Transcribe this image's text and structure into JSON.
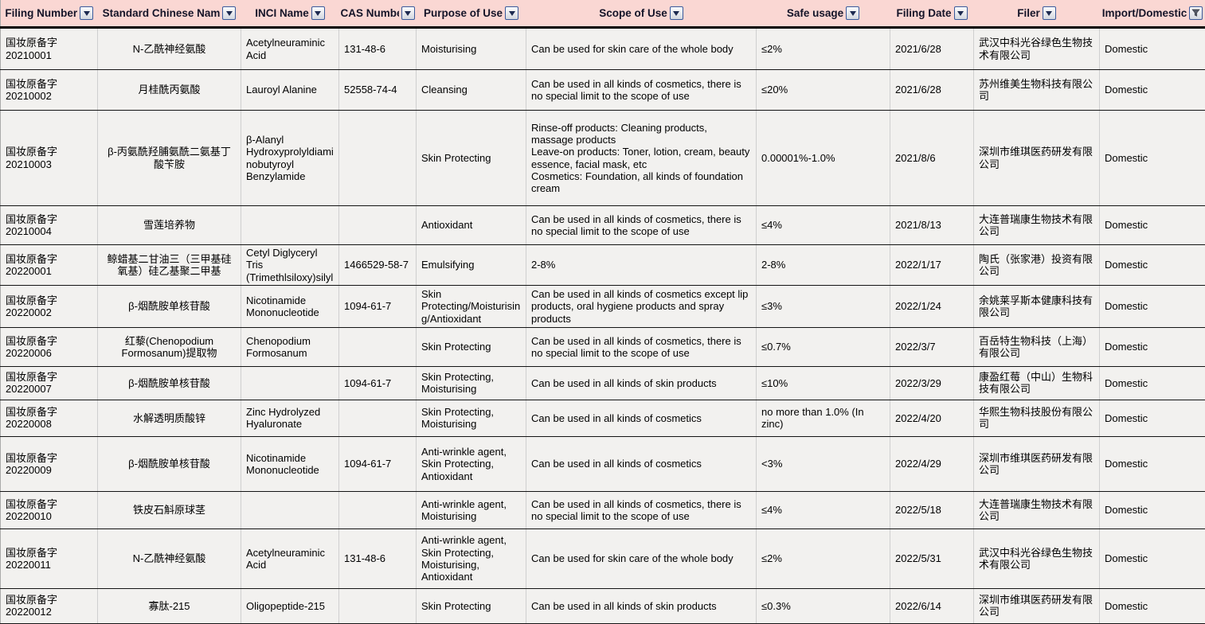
{
  "colors": {
    "header_bg": "#fad7d3",
    "header_text": "#141428",
    "row_bg": "#f2f1ef",
    "grid_dark": "#141414",
    "grid_light": "#cfcfcf",
    "filter_button_border": "#3a5a9b",
    "filter_button_glyph": "#1c2a50"
  },
  "icons": {
    "filter_dropdown": "down-triangle",
    "filter_applied": "funnel"
  },
  "header": {
    "columns": [
      {
        "label": "Filing Number",
        "filter_icon": "dropdown"
      },
      {
        "label": "Standard Chinese Nam",
        "filter_icon": "dropdown"
      },
      {
        "label": "INCI Name",
        "filter_icon": "dropdown"
      },
      {
        "label": "CAS Numbe",
        "filter_icon": "dropdown"
      },
      {
        "label": "Purpose of Use",
        "filter_icon": "dropdown"
      },
      {
        "label": "Scope of Use",
        "filter_icon": "dropdown"
      },
      {
        "label": "Safe usage",
        "filter_icon": "dropdown"
      },
      {
        "label": "Filing Date",
        "filter_icon": "dropdown"
      },
      {
        "label": "Filer",
        "filter_icon": "dropdown"
      },
      {
        "label": "Import/Domestic",
        "filter_icon": "funnel"
      }
    ]
  },
  "rows": [
    {
      "filing_number": "国妆原备字 20210001",
      "chinese_name": "N-乙酰神经氨酸",
      "inci_name": "Acetylneuraminic Acid",
      "cas_number": "131-48-6",
      "purpose": "Moisturising",
      "scope": "Can be used for skin care of the whole body",
      "safe_usage": "≤2%",
      "filing_date": "2021/6/28",
      "filer": "武汉中科光谷绿色生物技术有限公司",
      "import_domestic": "Domestic"
    },
    {
      "filing_number": "国妆原备字 20210002",
      "chinese_name": "月桂酰丙氨酸",
      "inci_name": "Lauroyl Alanine",
      "cas_number": "52558-74-4",
      "purpose": "Cleansing",
      "scope": "Can be used in all kinds of cosmetics, there is no special limit to the scope of use",
      "safe_usage": "≤20%",
      "filing_date": "2021/6/28",
      "filer": "苏州维美生物科技有限公司",
      "import_domestic": "Domestic"
    },
    {
      "filing_number": "国妆原备字 20210003",
      "chinese_name": "β-丙氨酰羟脯氨酰二氨基丁酸苄胺",
      "inci_name": "β-Alanyl Hydroxyprolyldiaminobutyroyl Benzylamide",
      "cas_number": "",
      "purpose": "Skin Protecting",
      "scope": "Rinse-off products: Cleaning products, massage products\nLeave-on products: Toner, lotion, cream, beauty essence, facial mask, etc\nCosmetics: Foundation, all kinds of foundation cream",
      "safe_usage": "0.00001%-1.0%",
      "filing_date": "2021/8/6",
      "filer": "深圳市维琪医药研发有限公司",
      "import_domestic": "Domestic"
    },
    {
      "filing_number": "国妆原备字 20210004",
      "chinese_name": "雪莲培养物",
      "inci_name": "",
      "cas_number": "",
      "purpose": "Antioxidant",
      "scope": "Can be used in all kinds of cosmetics, there is no special limit to the scope of use",
      "safe_usage": "≤4%",
      "filing_date": "2021/8/13",
      "filer": "大连普瑞康生物技术有限公司",
      "import_domestic": "Domestic"
    },
    {
      "filing_number": "国妆原备字 20220001",
      "chinese_name": "鲸蜡基二甘油三（三甲基硅氧基）硅乙基聚二甲基",
      "inci_name": "Cetyl Diglyceryl Tris (Trimethlsiloxy)silyl",
      "cas_number": "1466529-58-7",
      "purpose": "Emulsifying",
      "scope": "2-8%",
      "safe_usage": "2-8%",
      "filing_date": "2022/1/17",
      "filer": "陶氏（张家港）投资有限公司",
      "import_domestic": "Domestic"
    },
    {
      "filing_number": "国妆原备字 20220002",
      "chinese_name": "β-烟酰胺单核苷酸",
      "inci_name": "Nicotinamide Mononucleotide",
      "cas_number": "1094-61-7",
      "purpose": "Skin Protecting/Moisturising/Antioxidant",
      "scope": "Can be used in all kinds of cosmetics except lip products, oral hygiene products and spray products",
      "safe_usage": "≤3%",
      "filing_date": "2022/1/24",
      "filer": "余姚莱孚斯本健康科技有限公司",
      "import_domestic": "Domestic"
    },
    {
      "filing_number": "国妆原备字 20220006",
      "chinese_name": "红藜(Chenopodium Formosanum)提取物",
      "inci_name": "Chenopodium Formosanum",
      "cas_number": "",
      "purpose": "Skin Protecting",
      "scope": "Can be used in all kinds of cosmetics, there is no special limit to the scope of use",
      "safe_usage": "≤0.7%",
      "filing_date": "2022/3/7",
      "filer": "百岳特生物科技（上海）有限公司",
      "import_domestic": "Domestic"
    },
    {
      "filing_number": "国妆原备字 20220007",
      "chinese_name": "β-烟酰胺单核苷酸",
      "inci_name": "",
      "cas_number": "1094-61-7",
      "purpose": "Skin Protecting, Moisturising",
      "scope": "Can be used in all kinds of skin products",
      "safe_usage": "≤10%",
      "filing_date": "2022/3/29",
      "filer": "康盈红莓（中山）生物科技有限公司",
      "import_domestic": "Domestic"
    },
    {
      "filing_number": "国妆原备字 20220008",
      "chinese_name": "水解透明质酸锌",
      "inci_name": "Zinc Hydrolyzed Hyaluronate",
      "cas_number": "",
      "purpose": "Skin Protecting, Moisturising",
      "scope": "Can be used in all kinds of cosmetics",
      "safe_usage": "no more than 1.0% (In zinc)",
      "filing_date": "2022/4/20",
      "filer": "华熙生物科技股份有限公司",
      "import_domestic": "Domestic"
    },
    {
      "filing_number": "国妆原备字 20220009",
      "chinese_name": "β-烟酰胺单核苷酸",
      "inci_name": "Nicotinamide Mononucleotide",
      "cas_number": "1094-61-7",
      "purpose": "Anti-wrinkle agent, Skin Protecting, Antioxidant",
      "scope": "Can be used in all kinds of cosmetics",
      "safe_usage": "<3%",
      "filing_date": "2022/4/29",
      "filer": "深圳市维琪医药研发有限公司",
      "import_domestic": "Domestic"
    },
    {
      "filing_number": "国妆原备字 20220010",
      "chinese_name": "铁皮石斛原球茎",
      "inci_name": "",
      "cas_number": "",
      "purpose": "Anti-wrinkle agent, Moisturising",
      "scope": "Can be used in all kinds of cosmetics, there is no special limit to the scope of use",
      "safe_usage": "≤4%",
      "filing_date": "2022/5/18",
      "filer": "大连普瑞康生物技术有限公司",
      "import_domestic": "Domestic"
    },
    {
      "filing_number": "国妆原备字 20220011",
      "chinese_name": "N-乙酰神经氨酸",
      "inci_name": "Acetylneuraminic Acid",
      "cas_number": "131-48-6",
      "purpose": "Anti-wrinkle agent, Skin Protecting, Moisturising, Antioxidant",
      "scope": "Can be used for skin care of the whole body",
      "safe_usage": "≤2%",
      "filing_date": "2022/5/31",
      "filer": "武汉中科光谷绿色生物技术有限公司",
      "import_domestic": "Domestic"
    },
    {
      "filing_number": "国妆原备字 20220012",
      "chinese_name": "寡肽-215",
      "inci_name": "Oligopeptide-215",
      "cas_number": "",
      "purpose": "Skin Protecting",
      "scope": "Can be used in all kinds of skin products",
      "safe_usage": "≤0.3%",
      "filing_date": "2022/6/14",
      "filer": "深圳市维琪医药研发有限公司",
      "import_domestic": "Domestic"
    }
  ]
}
